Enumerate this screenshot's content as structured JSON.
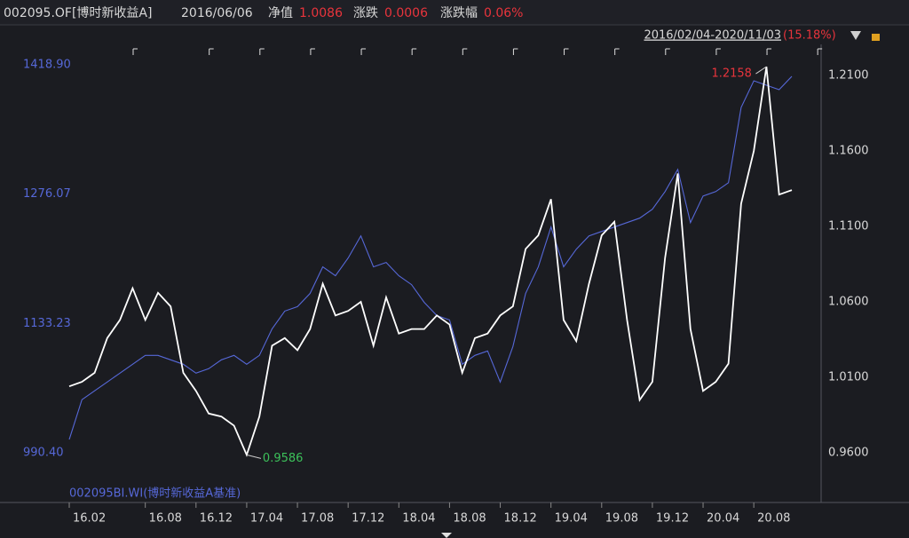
{
  "header": {
    "code": "002095.OF[博时新收益A]",
    "date": "2016/06/06",
    "nav_label": "净值",
    "nav": "1.0086",
    "change_label": "涨跌",
    "change": "0.0006",
    "pct_label": "涨跌幅",
    "pct": "0.06%",
    "range": "2016/02/04-2020/11/03",
    "range_change": "(15.18%)"
  },
  "chart_data": {
    "type": "line",
    "categories": [
      "16.02",
      null,
      null,
      null,
      null,
      null,
      "16.08",
      null,
      null,
      null,
      "16.12",
      null,
      null,
      null,
      "17.04",
      null,
      null,
      null,
      "17.08",
      null,
      null,
      null,
      "17.12",
      null,
      null,
      null,
      "18.04",
      null,
      null,
      null,
      "18.08",
      null,
      null,
      null,
      "18.12",
      null,
      null,
      null,
      "19.04",
      null,
      null,
      null,
      "19.08",
      null,
      null,
      null,
      "19.12",
      null,
      null,
      null,
      "20.04",
      null,
      null,
      null,
      "20.08",
      null,
      null,
      null
    ],
    "series": [
      {
        "name": "002095BI.WI(博时新收益A基准)",
        "color": "#5668d8",
        "axis": "y",
        "values": [
          1005.1,
          1049.1,
          1058.9,
          1068.6,
          1078.4,
          1088.2,
          1098.0,
          1098.0,
          1093.1,
          1088.2,
          1078.4,
          1083.3,
          1093.1,
          1098.0,
          1088.2,
          1098.0,
          1127.3,
          1146.9,
          1151.8,
          1166.5,
          1195.8,
          1186.0,
          1205.6,
          1230.0,
          1195.8,
          1200.7,
          1186.0,
          1176.2,
          1156.6,
          1142.0,
          1137.1,
          1088.2,
          1098.0,
          1102.9,
          1068.6,
          1107.8,
          1166.5,
          1195.8,
          1239.8,
          1195.8,
          1215.3,
          1230.0,
          1234.9,
          1239.8,
          1244.7,
          1249.6,
          1259.4,
          1278.9,
          1303.4,
          1244.7,
          1274.0,
          1278.9,
          1288.7,
          1371.8,
          1401.2,
          1396.3,
          1391.4,
          1406.1
        ]
      },
      {
        "color": "#ffffff",
        "axis": "y2",
        "values": [
          1.004,
          1.007,
          1.013,
          1.036,
          1.048,
          1.069,
          1.048,
          1.066,
          1.057,
          1.013,
          1.001,
          0.986,
          0.984,
          0.978,
          0.9586,
          0.984,
          1.031,
          1.036,
          1.028,
          1.042,
          1.072,
          1.051,
          1.054,
          1.06,
          1.031,
          1.063,
          1.039,
          1.042,
          1.042,
          1.051,
          1.045,
          1.013,
          1.036,
          1.039,
          1.051,
          1.057,
          1.095,
          1.104,
          1.128,
          1.048,
          1.034,
          1.072,
          1.104,
          1.113,
          1.048,
          0.995,
          1.007,
          1.089,
          1.145,
          1.042,
          1.001,
          1.007,
          1.019,
          1.125,
          1.16,
          1.2158,
          1.131,
          1.134
        ]
      }
    ],
    "ylim": [
      956.2,
      1436.5
    ],
    "yticks": [
      {
        "value": 990.4,
        "label": "990.40"
      },
      {
        "value": 1133.23,
        "label": "1133.23"
      },
      {
        "value": 1276.07,
        "label": "1276.07"
      },
      {
        "value": 1418.9,
        "label": "1418.90"
      }
    ],
    "y2lim": [
      0.9394,
      1.2276
    ],
    "y2ticks": [
      {
        "value": 0.96,
        "label": "0.9600"
      },
      {
        "value": 1.01,
        "label": "1.0100"
      },
      {
        "value": 1.06,
        "label": "1.0600"
      },
      {
        "value": 1.11,
        "label": "1.1100"
      },
      {
        "value": 1.16,
        "label": "1.1600"
      },
      {
        "value": 1.21,
        "label": "1.2100"
      }
    ],
    "annotations": [
      {
        "text": "0.9586",
        "color": "#3cc05a"
      },
      {
        "text": "1.2158",
        "color": "#e8343c"
      }
    ]
  }
}
